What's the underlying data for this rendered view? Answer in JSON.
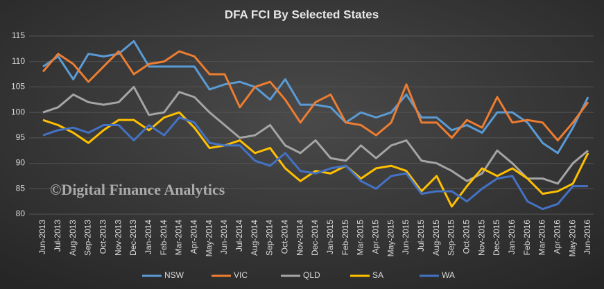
{
  "chart_data": {
    "type": "line",
    "title": "DFA FCI By Selected States",
    "annotation": "©Digital Finance Analytics",
    "categories": [
      "Jun-2013",
      "Jul-2013",
      "Aug-2013",
      "Sep-2013",
      "Oct-2013",
      "Nov-2013",
      "Dec-2013",
      "Jan-2014",
      "Feb-2014",
      "Mar-2014",
      "Apr-2014",
      "May-2014",
      "Jun-2014",
      "Jul-2014",
      "Aug-2014",
      "Sep-2014",
      "Oct-2014",
      "Nov-2014",
      "Dec-2014",
      "Jan-2015",
      "Feb-2015",
      "Mar-2015",
      "Apr-2015",
      "May-2015",
      "Jun-2015",
      "Jul-2015",
      "Aug-2015",
      "Sep-2015",
      "Oct-2015",
      "Nov-2015",
      "Dec-2015",
      "Jan-2016",
      "Feb-2016",
      "Mar-2016",
      "Apr-2016",
      "May-2016",
      "Jun-2016"
    ],
    "series": [
      {
        "name": "NSW",
        "color": "#5b9bd5",
        "values": [
          109,
          111,
          106.5,
          111.5,
          111,
          111.5,
          114,
          109,
          109,
          109,
          109,
          104.5,
          105.5,
          106,
          105,
          102.5,
          106.5,
          101.5,
          101.5,
          101,
          98,
          100,
          99,
          100,
          103.5,
          99,
          99,
          96.5,
          97.5,
          96,
          100,
          100,
          98,
          94,
          92,
          97,
          103
        ]
      },
      {
        "name": "VIC",
        "color": "#ed7d31",
        "values": [
          108,
          111.5,
          109.5,
          106,
          109,
          112,
          107.5,
          109.5,
          110,
          112,
          111,
          107.5,
          107.5,
          101,
          105,
          106,
          102.5,
          98,
          102,
          103.5,
          98,
          97.5,
          95.5,
          98,
          105.5,
          98,
          98,
          95,
          98.5,
          97,
          103,
          98,
          98.5,
          98,
          94.5,
          98,
          102
        ]
      },
      {
        "name": "QLD",
        "color": "#a5a5a5",
        "values": [
          100,
          101,
          103.5,
          102,
          101.5,
          102,
          105,
          99.5,
          100,
          104,
          103,
          100,
          97.5,
          95,
          95.5,
          97.5,
          93.5,
          92,
          94.5,
          91,
          90.5,
          93.5,
          91,
          93.5,
          94.5,
          90.5,
          90,
          88.5,
          86.5,
          88,
          92.5,
          90,
          87,
          87,
          86,
          90,
          92.5
        ]
      },
      {
        "name": "SA",
        "color": "#ffc000",
        "values": [
          98.5,
          97.5,
          96,
          94,
          96.5,
          98.5,
          98.5,
          96.5,
          99,
          100,
          97,
          93,
          93.5,
          94.5,
          92,
          93,
          89,
          86.5,
          88.5,
          88,
          89.5,
          87,
          89,
          89.5,
          88.5,
          84.5,
          87.5,
          81.5,
          85.5,
          89,
          87.5,
          89,
          87,
          84,
          84.5,
          86,
          92
        ]
      },
      {
        "name": "WA",
        "color": "#4472c4",
        "values": [
          95.5,
          96.5,
          97,
          96,
          97.5,
          97.5,
          94.5,
          97.5,
          95.5,
          99,
          98,
          94,
          93.5,
          93.5,
          90.5,
          89.5,
          92,
          88.5,
          88,
          89,
          89.5,
          86.5,
          85,
          87.5,
          88,
          84,
          84.5,
          84.5,
          82.5,
          85,
          87,
          87.5,
          82.5,
          81,
          82,
          85.5,
          85.5
        ]
      }
    ],
    "ylim": [
      80,
      115
    ],
    "yticks": [
      80,
      85,
      90,
      95,
      100,
      105,
      110,
      115
    ],
    "grid": true
  }
}
